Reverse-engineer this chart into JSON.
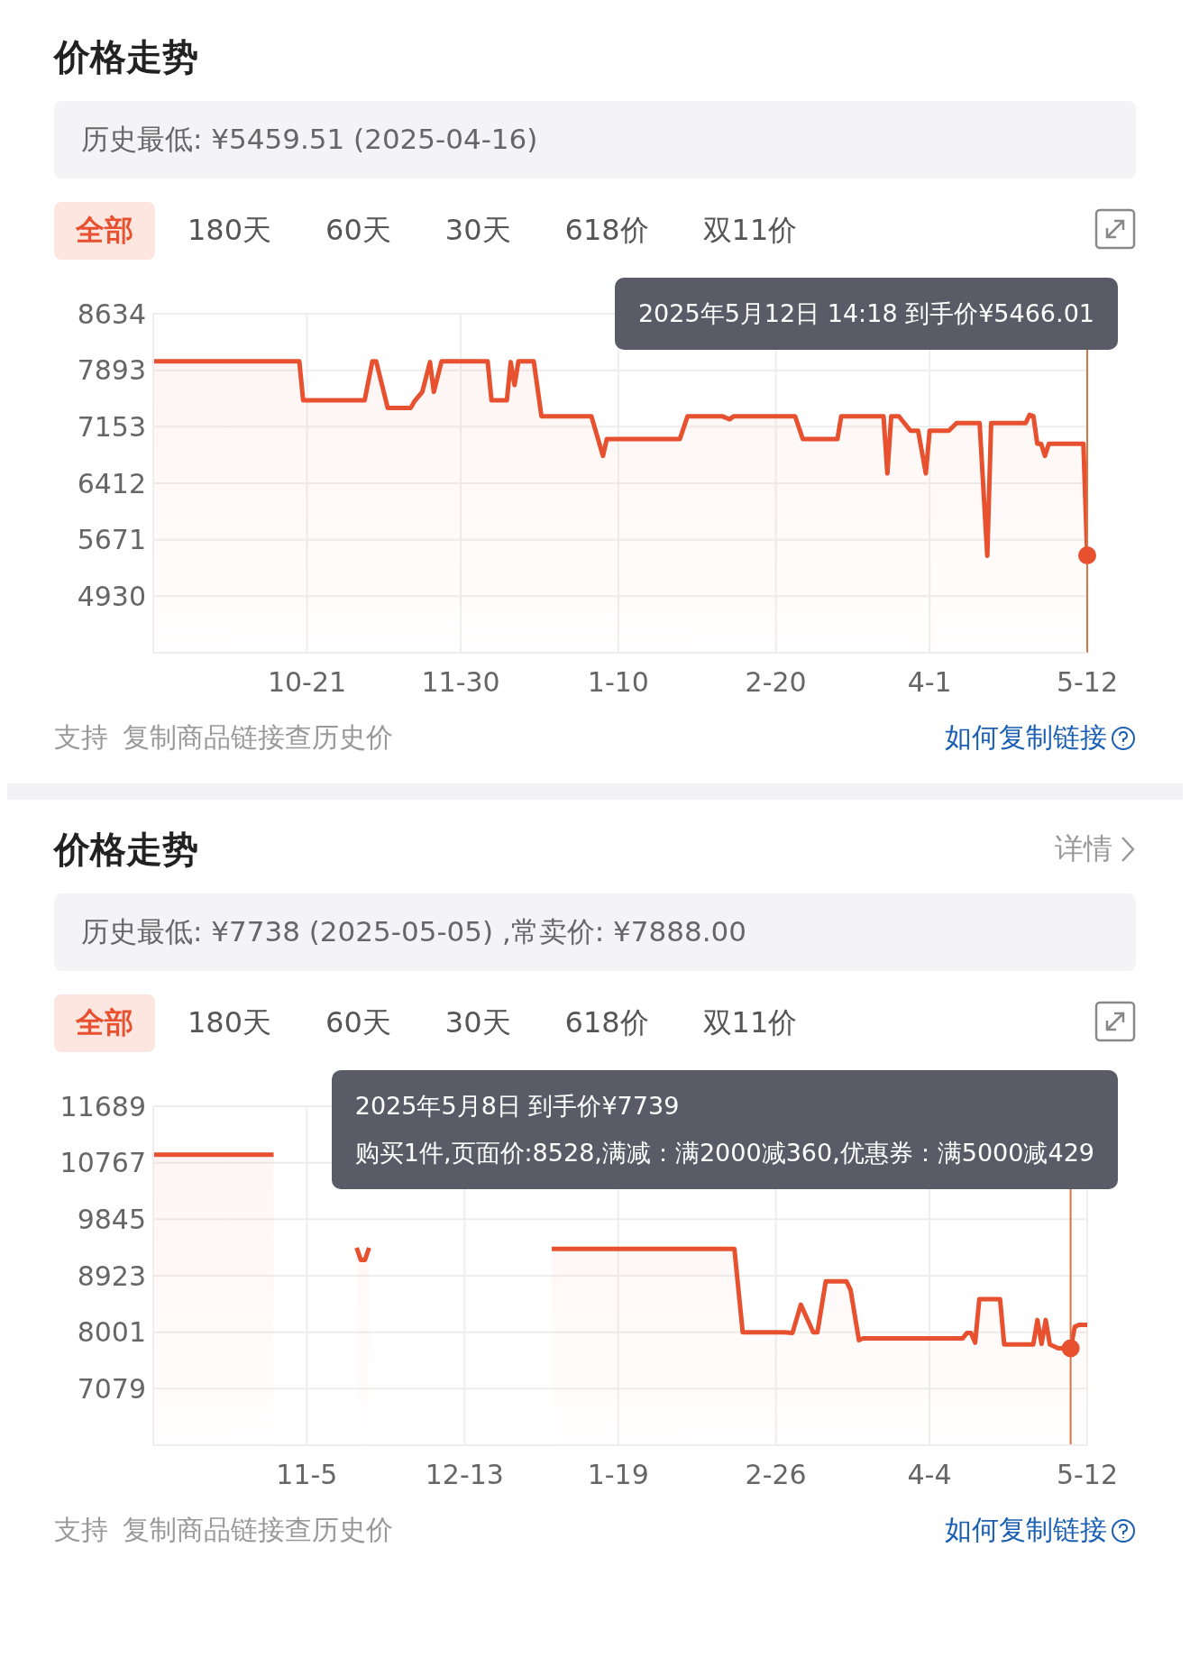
{
  "chart_data": [
    {
      "type": "area",
      "title": "价格走势",
      "subtitle": "历史最低: ¥5459.51 (2025-04-16)",
      "color": "#e8512f",
      "grid": true,
      "xlim": [
        "2024-09-11",
        "2025-05-12"
      ],
      "xticks": [
        {
          "value": "2024-10-21",
          "label": "10-21"
        },
        {
          "value": "2024-11-30",
          "label": "11-30"
        },
        {
          "value": "2025-01-10",
          "label": "1-10"
        },
        {
          "value": "2025-02-20",
          "label": "2-20"
        },
        {
          "value": "2025-04-01",
          "label": "4-1"
        },
        {
          "value": "2025-05-12",
          "label": "5-12"
        }
      ],
      "ylim": [
        4189,
        8634
      ],
      "yticks": [
        4930,
        5671,
        6412,
        7153,
        7893,
        8634
      ],
      "x": [
        "2024-09-11",
        "2024-10-19",
        "2024-10-20",
        "2024-11-05",
        "2024-11-07",
        "2024-11-08",
        "2024-11-11",
        "2024-11-17",
        "2024-11-18",
        "2024-11-20",
        "2024-11-22",
        "2024-11-23",
        "2024-11-25",
        "2024-12-07",
        "2024-12-08",
        "2024-12-12",
        "2024-12-13",
        "2024-12-14",
        "2024-12-15",
        "2024-12-19",
        "2024-12-21",
        "2025-01-03",
        "2025-01-06",
        "2025-01-07",
        "2025-01-26",
        "2025-01-28",
        "2025-02-06",
        "2025-02-08",
        "2025-02-09",
        "2025-02-25",
        "2025-02-27",
        "2025-03-08",
        "2025-03-09",
        "2025-03-20",
        "2025-03-21",
        "2025-03-22",
        "2025-03-24",
        "2025-03-27",
        "2025-03-29",
        "2025-03-31",
        "2025-04-01",
        "2025-04-06",
        "2025-04-08",
        "2025-04-14",
        "2025-04-16",
        "2025-04-17",
        "2025-04-26",
        "2025-04-27",
        "2025-04-28",
        "2025-04-29",
        "2025-04-30",
        "2025-05-01",
        "2025-05-02",
        "2025-05-10",
        "2025-05-11",
        "2025-05-12"
      ],
      "values": [
        8010,
        8010,
        7500,
        7500,
        8010,
        8010,
        7400,
        7400,
        7490,
        7610,
        8000,
        7610,
        8010,
        8010,
        7500,
        7500,
        8000,
        7700,
        8010,
        8010,
        7290,
        7290,
        6770,
        6990,
        6990,
        7290,
        7290,
        7250,
        7290,
        7290,
        6990,
        6990,
        7290,
        7290,
        6540,
        7290,
        7290,
        7100,
        7100,
        6540,
        7100,
        7100,
        7200,
        7200,
        5459.51,
        7200,
        7200,
        7310,
        7290,
        6930,
        6930,
        6770,
        6930,
        6930,
        6930,
        5466.01
      ],
      "ref_lines": [
        {
          "axis": "x",
          "value": "2025-05-12",
          "color": "#d9733f"
        }
      ],
      "annotations": [
        "全部",
        "180天",
        "60天",
        "30天",
        "618价",
        "双11价",
        "支持",
        "复制商品链接查历史价",
        "如何复制链接",
        "2025年5月12日 14:18 到手价¥5466.01"
      ]
    },
    {
      "type": "area",
      "title": "价格走势",
      "subtitle": "历史最低: ¥7738 (2025-05-05) ,常卖价: ¥7888.00",
      "color": "#e8512f",
      "grid": true,
      "xlim": [
        "2024-09-29",
        "2025-05-12"
      ],
      "xticks": [
        {
          "value": "2024-11-05",
          "label": "11-5"
        },
        {
          "value": "2024-12-13",
          "label": "12-13"
        },
        {
          "value": "2025-01-19",
          "label": "1-19"
        },
        {
          "value": "2025-02-26",
          "label": "2-26"
        },
        {
          "value": "2025-04-04",
          "label": "4-4"
        },
        {
          "value": "2025-05-12",
          "label": "5-12"
        }
      ],
      "ylim": [
        6157,
        11689
      ],
      "yticks": [
        7079,
        8001,
        8923,
        9845,
        10767,
        11689
      ],
      "x": [
        "2024-09-29",
        "2024-10-28",
        "2024-10-29",
        "2024-11-17",
        "2024-11-18",
        "2024-11-19",
        "2024-11-20",
        "2024-11-21",
        "2025-01-03",
        "2025-02-16",
        "2025-02-18",
        "2025-02-28",
        "2025-03-02",
        "2025-03-04",
        "2025-03-07",
        "2025-03-08",
        "2025-03-10",
        "2025-03-15",
        "2025-03-16",
        "2025-03-18",
        "2025-03-19",
        "2025-04-12",
        "2025-04-13",
        "2025-04-14",
        "2025-04-15",
        "2025-04-16",
        "2025-04-21",
        "2025-04-22",
        "2025-04-29",
        "2025-04-30",
        "2025-05-01",
        "2025-05-02",
        "2025-05-03",
        "2025-05-05",
        "2025-05-08",
        "2025-05-09",
        "2025-05-10",
        "2025-05-12"
      ],
      "values": [
        10900,
        10900,
        null,
        9380,
        9180,
        9180,
        9380,
        null,
        9360,
        9360,
        8000,
        8000,
        7990,
        8450,
        8000,
        8000,
        8830,
        8830,
        8690,
        7870,
        7900,
        7900,
        7990,
        7990,
        7830,
        8540,
        8540,
        7800,
        7800,
        8200,
        7810,
        8200,
        7800,
        7738,
        7739,
        8090,
        8120,
        8120
      ],
      "ref_lines": [
        {
          "axis": "x",
          "value": "2025-05-08",
          "color": "#d9733f"
        }
      ],
      "annotations": [
        "全部",
        "180天",
        "60天",
        "30天",
        "618价",
        "双11价",
        "支持",
        "复制商品链接查历史价",
        "如何复制链接",
        "2025年5月8日 到手价¥7739\n购买1件,页面价:8528,满减：满2000减360,优惠券：满5000减429",
        "详情"
      ]
    }
  ]
}
